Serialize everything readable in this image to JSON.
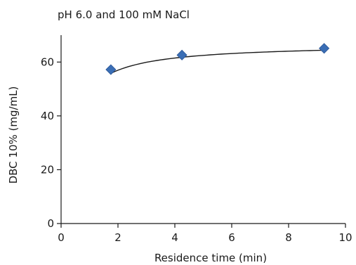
{
  "chart_data": {
    "type": "scatter",
    "title": "pH 6.0 and 100 mM NaCl",
    "xlabel": "Residence time (min)",
    "ylabel": "DBC 10% (mg/mL)",
    "xlim": [
      0,
      10
    ],
    "ylim": [
      0,
      70
    ],
    "xticks": [
      0,
      2,
      4,
      6,
      8,
      10
    ],
    "yticks": [
      0,
      20,
      40,
      60
    ],
    "grid": false,
    "series": [
      {
        "marker": "diamond",
        "color": "#3a6eb5",
        "x": [
          1.75,
          4.25,
          9.25
        ],
        "y": [
          57.2,
          62.6,
          65.1
        ]
      }
    ],
    "trendline": {
      "type": "smooth-fit",
      "color": "#1a1a1a"
    }
  }
}
